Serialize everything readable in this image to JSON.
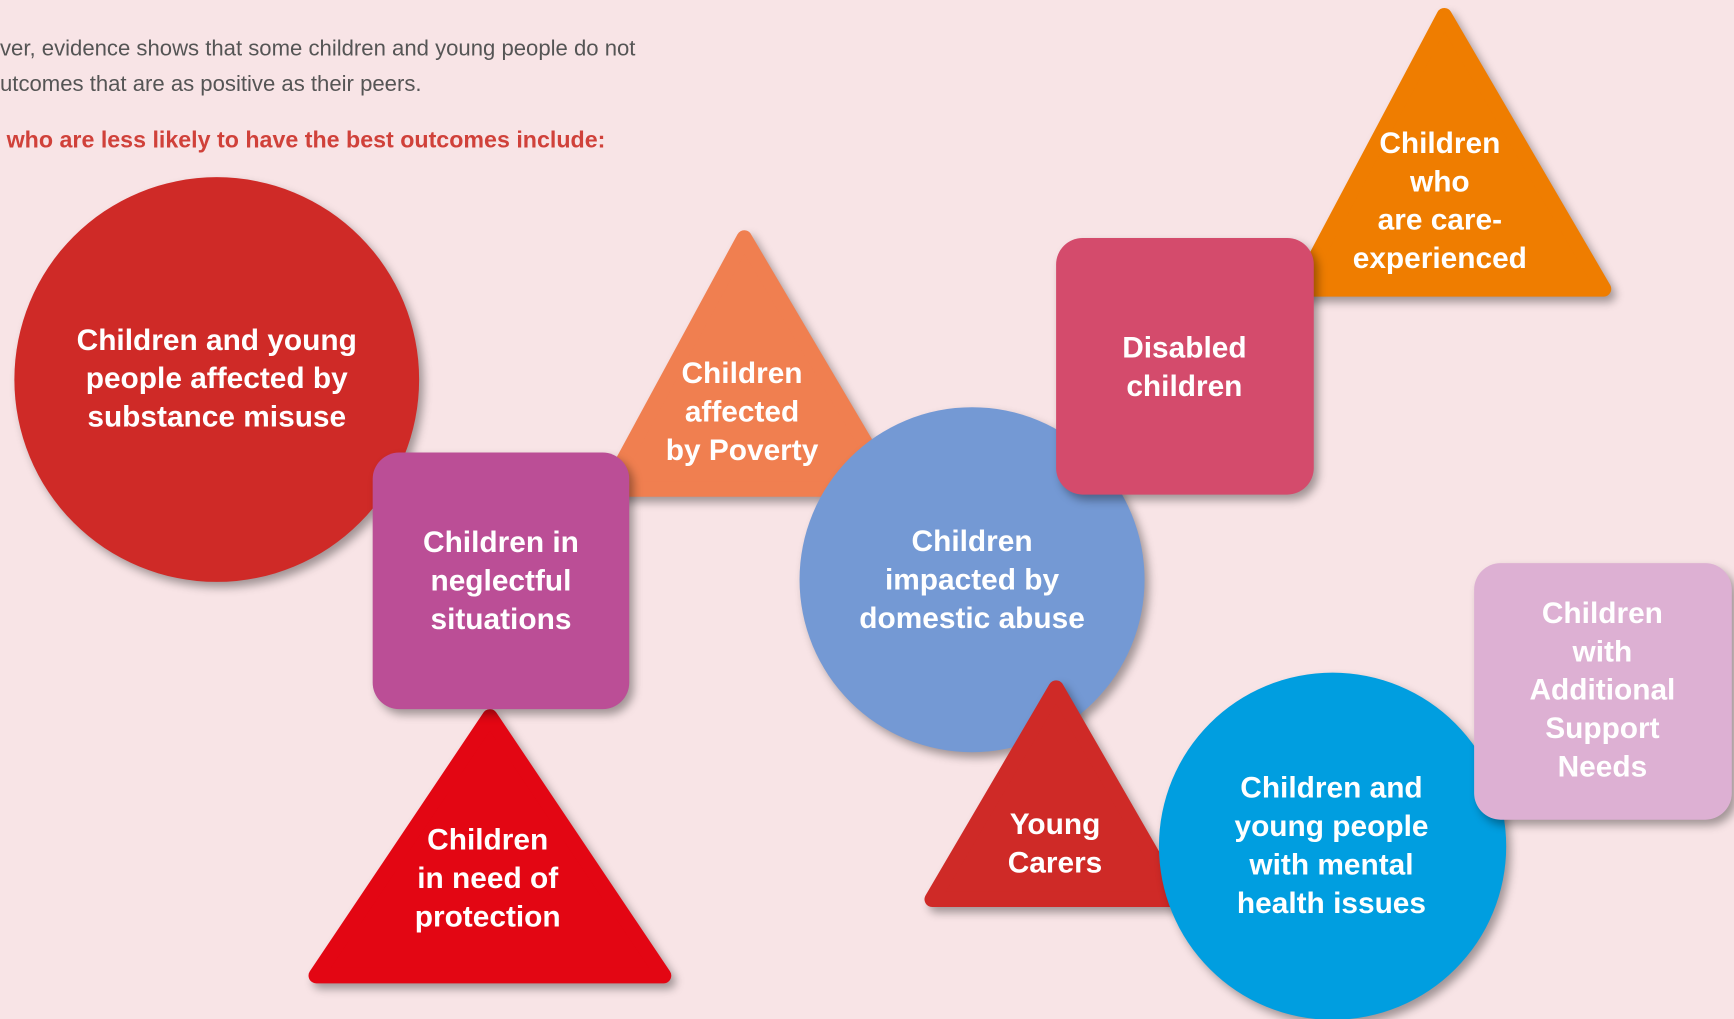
{
  "intro": {
    "lines": [
      "ver, evidence shows that some children and young people do not",
      "utcomes that are as positive as their peers."
    ]
  },
  "heading": "who are less likely to have the best outcomes include:",
  "shapes": [
    {
      "lines": [
        "Children and young",
        "people affected by",
        "substance misuse"
      ]
    },
    {
      "lines": [
        "Children",
        "affected",
        "by Poverty"
      ]
    },
    {
      "lines": [
        "Children",
        "in need of",
        "protection"
      ]
    },
    {
      "lines": [
        "Children in",
        "neglectful",
        "situations"
      ]
    },
    {
      "lines": [
        "Children",
        "impacted by",
        "domestic abuse"
      ]
    },
    {
      "lines": [
        "Children",
        "who",
        "are care-",
        "experienced"
      ]
    },
    {
      "lines": [
        "Disabled",
        "children"
      ]
    },
    {
      "lines": [
        "Young",
        "Carers"
      ]
    },
    {
      "lines": [
        "Children and",
        "young people",
        "with mental",
        "health issues"
      ]
    },
    {
      "lines": [
        "Children",
        "with",
        "Additional",
        "Support",
        "Needs"
      ]
    }
  ]
}
